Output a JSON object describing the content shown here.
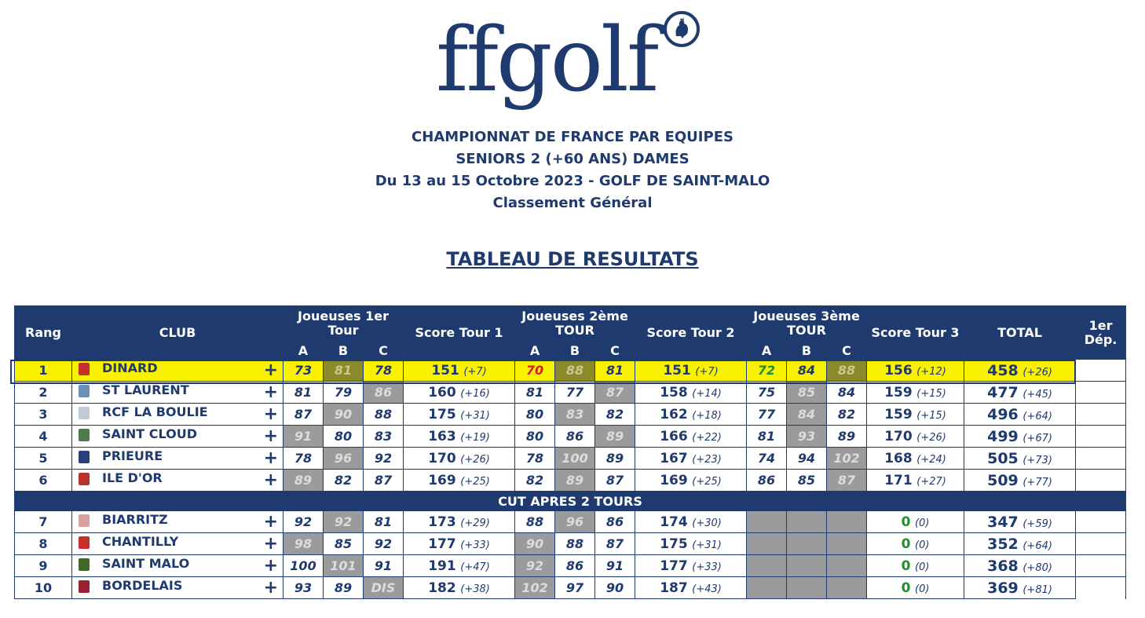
{
  "logo_text": "ffgolf",
  "header": {
    "line1": "CHAMPIONNAT DE FRANCE PAR EQUIPES",
    "line2": "SENIORS 2 (+60 ANS) DAMES",
    "line3": "Du 13 au 15 Octobre 2023 - GOLF DE SAINT-MALO",
    "line4": "Classement Général"
  },
  "table_title": "TABLEAU DE RESULTATS",
  "columns": {
    "rang": "Rang",
    "club": "CLUB",
    "tour1": "Joueuses 1er Tour",
    "score1": "Score Tour 1",
    "tour2": "Joueuses 2ème TOUR",
    "score2": "Score Tour 2",
    "tour3": "Joueuses 3ème TOUR",
    "score3": "Score Tour 3",
    "total": "TOTAL",
    "dep": "1er Dép.",
    "a": "A",
    "b": "B",
    "c": "C"
  },
  "plus_label": "+",
  "cut_label": "CUT APRES 2 TOURS",
  "rows": [
    {
      "rank": "1",
      "club": "DINARD",
      "t1": [
        "73",
        "81",
        "78"
      ],
      "s1": "151",
      "p1": "(+7)",
      "t2": [
        "70",
        "88",
        "81"
      ],
      "s2": "151",
      "p2": "(+7)",
      "t3": [
        "72",
        "84",
        "88"
      ],
      "s3": "156",
      "p3": "(+12)",
      "total": "458",
      "ptot": "(+26)"
    },
    {
      "rank": "2",
      "club": "ST LAURENT",
      "t1": [
        "81",
        "79",
        "86"
      ],
      "s1": "160",
      "p1": "(+16)",
      "t2": [
        "81",
        "77",
        "87"
      ],
      "s2": "158",
      "p2": "(+14)",
      "t3": [
        "75",
        "85",
        "84"
      ],
      "s3": "159",
      "p3": "(+15)",
      "total": "477",
      "ptot": "(+45)"
    },
    {
      "rank": "3",
      "club": "RCF LA BOULIE",
      "t1": [
        "87",
        "90",
        "88"
      ],
      "s1": "175",
      "p1": "(+31)",
      "t2": [
        "80",
        "83",
        "82"
      ],
      "s2": "162",
      "p2": "(+18)",
      "t3": [
        "77",
        "84",
        "82"
      ],
      "s3": "159",
      "p3": "(+15)",
      "total": "496",
      "ptot": "(+64)"
    },
    {
      "rank": "4",
      "club": "SAINT CLOUD",
      "t1": [
        "91",
        "80",
        "83"
      ],
      "s1": "163",
      "p1": "(+19)",
      "t2": [
        "80",
        "86",
        "89"
      ],
      "s2": "166",
      "p2": "(+22)",
      "t3": [
        "81",
        "93",
        "89"
      ],
      "s3": "170",
      "p3": "(+26)",
      "total": "499",
      "ptot": "(+67)"
    },
    {
      "rank": "5",
      "club": "PRIEURE",
      "t1": [
        "78",
        "96",
        "92"
      ],
      "s1": "170",
      "p1": "(+26)",
      "t2": [
        "78",
        "100",
        "89"
      ],
      "s2": "167",
      "p2": "(+23)",
      "t3": [
        "74",
        "94",
        "102"
      ],
      "s3": "168",
      "p3": "(+24)",
      "total": "505",
      "ptot": "(+73)"
    },
    {
      "rank": "6",
      "club": "ILE D'OR",
      "t1": [
        "89",
        "82",
        "87"
      ],
      "s1": "169",
      "p1": "(+25)",
      "t2": [
        "82",
        "89",
        "87"
      ],
      "s2": "169",
      "p2": "(+25)",
      "t3": [
        "86",
        "85",
        "87"
      ],
      "s3": "171",
      "p3": "(+27)",
      "total": "509",
      "ptot": "(+77)"
    }
  ],
  "rows_cut": [
    {
      "rank": "7",
      "club": "BIARRITZ",
      "t1": [
        "92",
        "92",
        "81"
      ],
      "s1": "173",
      "p1": "(+29)",
      "t2": [
        "88",
        "96",
        "86"
      ],
      "s2": "174",
      "p2": "(+30)",
      "s3": "0",
      "p3": "(0)",
      "total": "347",
      "ptot": "(+59)"
    },
    {
      "rank": "8",
      "club": "CHANTILLY",
      "t1": [
        "98",
        "85",
        "92"
      ],
      "s1": "177",
      "p1": "(+33)",
      "t2": [
        "90",
        "88",
        "87"
      ],
      "s2": "175",
      "p2": "(+31)",
      "s3": "0",
      "p3": "(0)",
      "total": "352",
      "ptot": "(+64)"
    },
    {
      "rank": "9",
      "club": "SAINT MALO",
      "t1": [
        "100",
        "101",
        "91"
      ],
      "s1": "191",
      "p1": "(+47)",
      "t2": [
        "92",
        "86",
        "91"
      ],
      "s2": "177",
      "p2": "(+33)",
      "s3": "0",
      "p3": "(0)",
      "total": "368",
      "ptot": "(+80)"
    },
    {
      "rank": "10",
      "club": "BORDELAIS",
      "t1": [
        "93",
        "89",
        "DIS"
      ],
      "s1": "182",
      "p1": "(+38)",
      "t2": [
        "102",
        "97",
        "90"
      ],
      "s2": "187",
      "p2": "(+43)",
      "s3": "0",
      "p3": "(0)",
      "total": "369",
      "ptot": "(+81)"
    }
  ],
  "colors": {
    "navy": "#1f3a6e",
    "highlight": "#f8f200",
    "drop": "#9b9b9b",
    "best_red": "#d62020",
    "best_green": "#1d8f2a"
  }
}
